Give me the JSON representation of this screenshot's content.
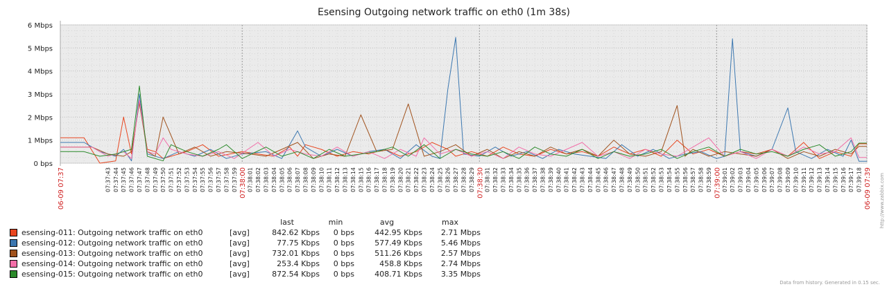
{
  "legend": {
    "headers": {
      "last": "last",
      "min": "min",
      "avg": "avg",
      "max": "max"
    },
    "rows": [
      {
        "name": "esensing-011: Outgoing network traffic on eth0",
        "fn": "[avg]",
        "last": "842.62 Kbps",
        "min": "0 bps",
        "avg": "442.95 Kbps",
        "max": "2.71 Mbps",
        "color": "#e8451e"
      },
      {
        "name": "esensing-012: Outgoing network traffic on eth0",
        "fn": "[avg]",
        "last": "77.75 Kbps",
        "min": "0 bps",
        "avg": "577.49 Kbps",
        "max": "5.46 Mbps",
        "color": "#3b77b0"
      },
      {
        "name": "esensing-013: Outgoing network traffic on eth0",
        "fn": "[avg]",
        "last": "732.01 Kbps",
        "min": "0 bps",
        "avg": "511.26 Kbps",
        "max": "2.57 Mbps",
        "color": "#a0521d"
      },
      {
        "name": "esensing-014: Outgoing network traffic on eth0",
        "fn": "[avg]",
        "last": "253.4 Kbps",
        "min": "0 bps",
        "avg": "458.8 Kbps",
        "max": "2.74 Mbps",
        "color": "#f26ea8"
      },
      {
        "name": "esensing-015: Outgoing network traffic on eth0",
        "fn": "[avg]",
        "last": "872.54 Kbps",
        "min": "0 bps",
        "avg": "408.71 Kbps",
        "max": "3.35 Mbps",
        "color": "#2b8a2b"
      }
    ]
  },
  "footer": "Data from history. Generated in 0.15 sec.",
  "watermark": "http://www.zabbix.com",
  "chart_data": {
    "type": "line",
    "title": "Esensing Outgoing network traffic on eth0 (1m 38s)",
    "xlabel": "",
    "ylabel": "",
    "y_unit": "Mbps",
    "ylim": [
      0,
      6
    ],
    "yticks": [
      0,
      1,
      2,
      3,
      4,
      5,
      6
    ],
    "ytick_labels": [
      "0 bps",
      "1 Mbps",
      "2 Mbps",
      "3 Mbps",
      "4 Mbps",
      "5 Mbps",
      "6 Mbps"
    ],
    "grid": true,
    "x_tick_labels": [
      "07:37:43",
      "07:37:44",
      "07:37:45",
      "07:37:46",
      "07:37:47",
      "07:37:48",
      "07:37:49",
      "07:37:50",
      "07:37:51",
      "07:37:52",
      "07:37:53",
      "07:37:54",
      "07:37:55",
      "07:37:56",
      "07:37:57",
      "07:37:58",
      "07:37:59",
      "07:38:01",
      "07:38:02",
      "07:38:03",
      "07:38:04",
      "07:38:05",
      "07:38:06",
      "07:38:07",
      "07:38:08",
      "07:38:09",
      "07:38:10",
      "07:38:11",
      "07:38:12",
      "07:38:13",
      "07:38:14",
      "07:38:15",
      "07:38:16",
      "07:38:17",
      "07:38:18",
      "07:38:19",
      "07:38:20",
      "07:38:21",
      "07:38:22",
      "07:38:23",
      "07:38:24",
      "07:38:25",
      "07:38:26",
      "07:38:27",
      "07:38:28",
      "07:38:29",
      "07:38:31",
      "07:38:32",
      "07:38:33",
      "07:38:34",
      "07:38:35",
      "07:38:36",
      "07:38:37",
      "07:38:38",
      "07:38:39",
      "07:38:40",
      "07:38:41",
      "07:38:42",
      "07:38:43",
      "07:38:44",
      "07:38:45",
      "07:38:46",
      "07:38:47",
      "07:38:48",
      "07:38:49",
      "07:38:50",
      "07:38:51",
      "07:38:52",
      "07:38:53",
      "07:38:54",
      "07:38:55",
      "07:38:56",
      "07:38:57",
      "07:38:58",
      "07:38:59",
      "07:39:01",
      "07:39:02",
      "07:39:03",
      "07:39:04",
      "07:39:05",
      "07:39:06",
      "07:39:07",
      "07:39:08",
      "07:39:09",
      "07:39:10",
      "07:39:11",
      "07:39:12",
      "07:39:13",
      "07:39:14",
      "07:39:15",
      "07:39:16",
      "07:39:17",
      "07:39:18"
    ],
    "x_major_labels": [
      {
        "label": "06-09 07:37",
        "time": "07:37:37"
      },
      {
        "label": "07:38:00",
        "time": "07:38:00"
      },
      {
        "label": "07:38:30",
        "time": "07:38:30"
      },
      {
        "label": "07:39:00",
        "time": "07:39:00"
      },
      {
        "label": "06-09 07:39",
        "time": "07:39:19"
      }
    ],
    "series": [
      {
        "name": "esensing-011: Outgoing network traffic on eth0",
        "color": "#e8451e",
        "times": [
          "07:37:37",
          "07:37:40",
          "07:37:42",
          "07:37:44",
          "07:37:45",
          "07:37:46",
          "07:37:47",
          "07:37:48",
          "07:37:49",
          "07:37:50",
          "07:37:51",
          "07:37:53",
          "07:37:55",
          "07:37:57",
          "07:38:00",
          "07:38:02",
          "07:38:04",
          "07:38:06",
          "07:38:07",
          "07:38:08",
          "07:38:10",
          "07:38:12",
          "07:38:14",
          "07:38:16",
          "07:38:18",
          "07:38:20",
          "07:38:22",
          "07:38:24",
          "07:38:26",
          "07:38:27",
          "07:38:29",
          "07:38:31",
          "07:38:33",
          "07:38:35",
          "07:38:37",
          "07:38:39",
          "07:38:41",
          "07:38:43",
          "07:38:45",
          "07:38:47",
          "07:38:49",
          "07:38:51",
          "07:38:53",
          "07:38:55",
          "07:38:57",
          "07:38:59",
          "07:39:01",
          "07:39:03",
          "07:39:05",
          "07:39:07",
          "07:39:09",
          "07:39:11",
          "07:39:13",
          "07:39:15",
          "07:39:17",
          "07:39:18",
          "07:39:19"
        ],
        "values": [
          1.1,
          1.1,
          0.0,
          0.1,
          2.0,
          0.4,
          2.7,
          0.6,
          0.5,
          0.2,
          0.3,
          0.5,
          0.8,
          0.3,
          0.5,
          0.4,
          0.3,
          0.7,
          0.3,
          0.8,
          0.6,
          0.3,
          0.5,
          0.4,
          0.6,
          0.3,
          0.5,
          0.9,
          0.6,
          0.3,
          0.5,
          0.3,
          0.7,
          0.4,
          0.3,
          0.6,
          0.4,
          0.5,
          0.3,
          0.7,
          0.4,
          0.6,
          0.3,
          1.0,
          0.4,
          0.6,
          0.3,
          0.5,
          0.4,
          0.6,
          0.3,
          0.9,
          0.2,
          0.5,
          0.3,
          0.84,
          0.84
        ]
      },
      {
        "name": "esensing-012: Outgoing network traffic on eth0",
        "color": "#3b77b0",
        "times": [
          "07:37:37",
          "07:37:40",
          "07:37:42",
          "07:37:44",
          "07:37:45",
          "07:37:46",
          "07:37:47",
          "07:37:48",
          "07:37:50",
          "07:37:52",
          "07:37:54",
          "07:37:56",
          "07:37:58",
          "07:38:00",
          "07:38:03",
          "07:38:05",
          "07:38:07",
          "07:38:08",
          "07:38:10",
          "07:38:12",
          "07:38:14",
          "07:38:16",
          "07:38:18",
          "07:38:20",
          "07:38:22",
          "07:38:24",
          "07:38:25",
          "07:38:26",
          "07:38:27",
          "07:38:28",
          "07:38:30",
          "07:38:32",
          "07:38:34",
          "07:38:36",
          "07:38:38",
          "07:38:40",
          "07:38:42",
          "07:38:44",
          "07:38:46",
          "07:38:48",
          "07:38:50",
          "07:38:52",
          "07:38:54",
          "07:38:56",
          "07:38:58",
          "07:39:00",
          "07:39:01",
          "07:39:02",
          "07:39:03",
          "07:39:05",
          "07:39:07",
          "07:39:09",
          "07:39:10",
          "07:39:12",
          "07:39:14",
          "07:39:16",
          "07:39:17",
          "07:39:18",
          "07:39:19"
        ],
        "values": [
          0.9,
          0.9,
          0.5,
          0.3,
          0.6,
          0.1,
          3.0,
          0.4,
          0.2,
          0.5,
          0.3,
          0.6,
          0.2,
          0.4,
          0.5,
          0.2,
          1.4,
          0.7,
          0.3,
          0.6,
          0.3,
          0.5,
          0.6,
          0.2,
          0.8,
          0.3,
          0.2,
          3.2,
          5.46,
          0.4,
          0.3,
          0.7,
          0.3,
          0.5,
          0.2,
          0.6,
          0.4,
          0.3,
          0.2,
          0.8,
          0.3,
          0.6,
          0.2,
          0.4,
          0.5,
          0.2,
          0.3,
          5.4,
          0.5,
          0.3,
          0.6,
          2.4,
          0.5,
          0.2,
          0.6,
          0.3,
          1.0,
          0.08,
          0.08
        ]
      },
      {
        "name": "esensing-013: Outgoing network traffic on eth0",
        "color": "#a0521d",
        "times": [
          "07:37:37",
          "07:37:41",
          "07:37:43",
          "07:37:45",
          "07:37:46",
          "07:37:47",
          "07:37:48",
          "07:37:49",
          "07:37:50",
          "07:37:52",
          "07:37:54",
          "07:37:56",
          "07:37:58",
          "07:38:01",
          "07:38:03",
          "07:38:05",
          "07:38:07",
          "07:38:09",
          "07:38:11",
          "07:38:13",
          "07:38:15",
          "07:38:17",
          "07:38:19",
          "07:38:21",
          "07:38:23",
          "07:38:25",
          "07:38:27",
          "07:38:29",
          "07:38:31",
          "07:38:33",
          "07:38:35",
          "07:38:37",
          "07:38:39",
          "07:38:41",
          "07:38:43",
          "07:38:45",
          "07:38:47",
          "07:38:49",
          "07:38:51",
          "07:38:53",
          "07:38:55",
          "07:38:56",
          "07:38:57",
          "07:38:59",
          "07:39:01",
          "07:39:03",
          "07:39:05",
          "07:39:07",
          "07:39:09",
          "07:39:11",
          "07:39:13",
          "07:39:15",
          "07:39:17",
          "07:39:18",
          "07:39:19"
        ],
        "values": [
          0.7,
          0.7,
          0.4,
          0.3,
          0.5,
          2.6,
          0.5,
          0.3,
          2.0,
          0.4,
          0.7,
          0.3,
          0.5,
          0.4,
          0.3,
          0.6,
          0.9,
          0.2,
          0.4,
          0.3,
          2.1,
          0.5,
          0.6,
          2.57,
          0.3,
          0.5,
          0.8,
          0.3,
          0.6,
          0.2,
          0.5,
          0.3,
          0.7,
          0.4,
          0.6,
          0.3,
          1.0,
          0.4,
          0.3,
          0.5,
          2.5,
          0.3,
          0.6,
          0.3,
          0.5,
          0.4,
          0.3,
          0.6,
          0.2,
          0.5,
          0.3,
          0.6,
          0.4,
          0.73,
          0.73
        ]
      },
      {
        "name": "esensing-014: Outgoing network traffic on eth0",
        "color": "#f26ea8",
        "times": [
          "07:37:37",
          "07:37:41",
          "07:37:43",
          "07:37:45",
          "07:37:46",
          "07:37:47",
          "07:37:48",
          "07:37:49",
          "07:37:50",
          "07:37:51",
          "07:37:53",
          "07:37:55",
          "07:37:57",
          "07:37:59",
          "07:38:02",
          "07:38:04",
          "07:38:06",
          "07:38:08",
          "07:38:10",
          "07:38:12",
          "07:38:14",
          "07:38:16",
          "07:38:18",
          "07:38:20",
          "07:38:22",
          "07:38:23",
          "07:38:25",
          "07:38:27",
          "07:38:29",
          "07:38:31",
          "07:38:33",
          "07:38:35",
          "07:38:37",
          "07:38:39",
          "07:38:41",
          "07:38:43",
          "07:38:45",
          "07:38:47",
          "07:38:49",
          "07:38:51",
          "07:38:53",
          "07:38:55",
          "07:38:57",
          "07:38:59",
          "07:39:01",
          "07:39:03",
          "07:39:05",
          "07:39:07",
          "07:39:09",
          "07:39:11",
          "07:39:13",
          "07:39:15",
          "07:39:17",
          "07:39:18",
          "07:39:19"
        ],
        "values": [
          0.7,
          0.7,
          0.3,
          0.5,
          0.2,
          2.74,
          0.5,
          0.4,
          1.1,
          0.6,
          0.4,
          0.3,
          0.5,
          0.2,
          0.9,
          0.3,
          0.6,
          0.4,
          0.3,
          0.7,
          0.3,
          0.5,
          0.2,
          0.6,
          0.3,
          1.1,
          0.4,
          0.6,
          0.3,
          0.5,
          0.2,
          0.7,
          0.4,
          0.3,
          0.6,
          0.9,
          0.3,
          0.5,
          0.2,
          0.6,
          0.4,
          0.3,
          0.7,
          1.1,
          0.3,
          0.5,
          0.2,
          0.6,
          0.3,
          0.7,
          0.4,
          0.5,
          1.1,
          0.25,
          0.25
        ]
      },
      {
        "name": "esensing-015: Outgoing network traffic on eth0",
        "color": "#2b8a2b",
        "times": [
          "07:37:37",
          "07:37:40",
          "07:37:42",
          "07:37:44",
          "07:37:46",
          "07:37:47",
          "07:37:48",
          "07:37:50",
          "07:37:51",
          "07:37:53",
          "07:37:55",
          "07:37:57",
          "07:37:58",
          "07:38:00",
          "07:38:03",
          "07:38:05",
          "07:38:07",
          "07:38:09",
          "07:38:11",
          "07:38:13",
          "07:38:15",
          "07:38:17",
          "07:38:19",
          "07:38:21",
          "07:38:23",
          "07:38:25",
          "07:38:27",
          "07:38:29",
          "07:38:31",
          "07:38:33",
          "07:38:35",
          "07:38:37",
          "07:38:39",
          "07:38:41",
          "07:38:43",
          "07:38:45",
          "07:38:47",
          "07:38:49",
          "07:38:51",
          "07:38:53",
          "07:38:55",
          "07:38:57",
          "07:38:59",
          "07:39:01",
          "07:39:03",
          "07:39:05",
          "07:39:07",
          "07:39:09",
          "07:39:11",
          "07:39:13",
          "07:39:15",
          "07:39:17",
          "07:39:18",
          "07:39:19"
        ],
        "values": [
          0.5,
          0.5,
          0.3,
          0.4,
          0.6,
          3.35,
          0.3,
          0.1,
          0.8,
          0.5,
          0.3,
          0.6,
          0.8,
          0.2,
          0.7,
          0.3,
          0.5,
          0.2,
          0.6,
          0.3,
          0.4,
          0.5,
          0.7,
          0.3,
          0.8,
          0.2,
          0.6,
          0.4,
          0.3,
          0.5,
          0.2,
          0.7,
          0.4,
          0.3,
          0.6,
          0.2,
          0.5,
          0.3,
          0.4,
          0.6,
          0.2,
          0.5,
          0.7,
          0.3,
          0.6,
          0.4,
          0.5,
          0.3,
          0.6,
          0.8,
          0.3,
          0.5,
          0.87,
          0.87
        ]
      }
    ]
  }
}
